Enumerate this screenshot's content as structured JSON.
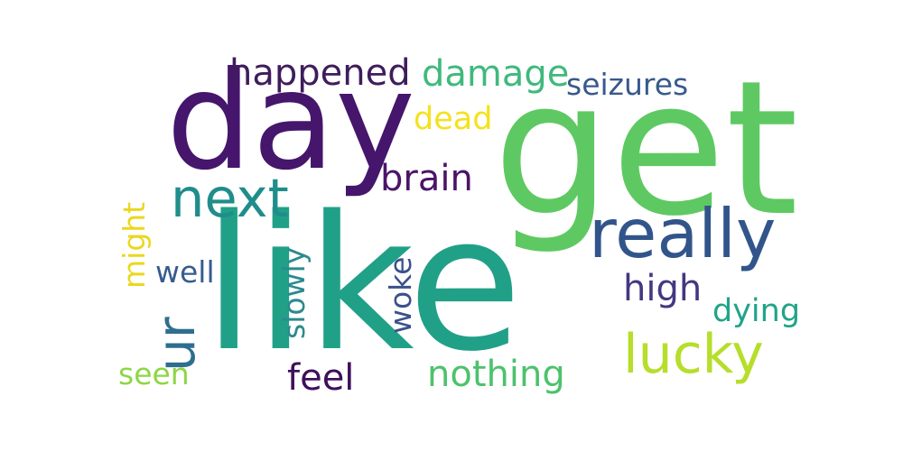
{
  "word_cloud": {
    "words": [
      {
        "text": "like",
        "color": "#21a088",
        "vertical": false
      },
      {
        "text": "get",
        "color": "#5ec962",
        "vertical": false
      },
      {
        "text": "day",
        "color": "#45166c",
        "vertical": false
      },
      {
        "text": "really",
        "color": "#31558b",
        "vertical": false
      },
      {
        "text": "next",
        "color": "#1f8d8b",
        "vertical": false
      },
      {
        "text": "ur",
        "color": "#2e6e8e",
        "vertical": true
      },
      {
        "text": "lucky",
        "color": "#b6de2b",
        "vertical": false
      },
      {
        "text": "happened",
        "color": "#3f1d5c",
        "vertical": false
      },
      {
        "text": "damage",
        "color": "#3fb97d",
        "vertical": false
      },
      {
        "text": "seizures",
        "color": "#38598c",
        "vertical": false
      },
      {
        "text": "dead",
        "color": "#f4e21e",
        "vertical": false
      },
      {
        "text": "brain",
        "color": "#4b1469",
        "vertical": false
      },
      {
        "text": "high",
        "color": "#453781",
        "vertical": false
      },
      {
        "text": "dying",
        "color": "#21a488",
        "vertical": false
      },
      {
        "text": "nothing",
        "color": "#4cc26c",
        "vertical": false
      },
      {
        "text": "feel",
        "color": "#3f0f5c",
        "vertical": false
      },
      {
        "text": "seen",
        "color": "#8ed645",
        "vertical": false
      },
      {
        "text": "well",
        "color": "#365c8d",
        "vertical": false
      },
      {
        "text": "might",
        "color": "#ead81e",
        "vertical": true
      },
      {
        "text": "slowly",
        "color": "#2d8a8e",
        "vertical": true
      },
      {
        "text": "woke",
        "color": "#3b518b",
        "vertical": true
      }
    ]
  }
}
